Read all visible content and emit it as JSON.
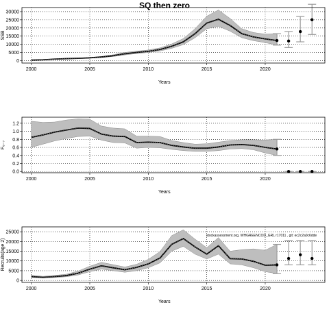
{
  "figure": {
    "title": "SQ then zero",
    "note": "stockassessment.org, WHGREENCOD_GRL r17011 , git: ec2c2a0c6dde",
    "colors": {
      "band": "#bebebe",
      "line": "#000000",
      "grid": "#000000",
      "projection": "#9a9a9a"
    }
  },
  "chart_data": [
    {
      "type": "line",
      "ylabel": "SSB",
      "xlabel": "Years",
      "xlim": [
        1999.2,
        2025.1
      ],
      "ylim": [
        -1500,
        32500
      ],
      "xticks": [
        2000,
        2005,
        2010,
        2015,
        2020
      ],
      "yticks": [
        0,
        5000,
        10000,
        15000,
        20000,
        25000,
        30000
      ],
      "ytick_labels": [
        "0",
        "5000",
        "10000",
        "15000",
        "20000",
        "25000",
        "30000"
      ],
      "grid": true,
      "x": [
        2000,
        2001,
        2002,
        2003,
        2004,
        2005,
        2006,
        2007,
        2008,
        2009,
        2010,
        2011,
        2012,
        2013,
        2014,
        2015,
        2016,
        2017,
        2018,
        2019,
        2020,
        2021
      ],
      "estimate": [
        300,
        500,
        900,
        1200,
        1400,
        1700,
        2200,
        3000,
        4200,
        5000,
        5700,
        6800,
        8800,
        11500,
        16500,
        23000,
        25300,
        21500,
        16500,
        14500,
        13300,
        12300
      ],
      "lower": [
        200,
        400,
        750,
        1000,
        1200,
        1450,
        1900,
        2500,
        3500,
        4300,
        5000,
        5900,
        7500,
        9800,
        14000,
        19500,
        21000,
        18000,
        14000,
        12200,
        11000,
        9500
      ],
      "upper": [
        400,
        650,
        1100,
        1450,
        1650,
        2000,
        2550,
        3600,
        5000,
        5800,
        6500,
        7800,
        10200,
        13500,
        19500,
        27200,
        31000,
        25800,
        19500,
        17200,
        16200,
        16500
      ],
      "projection": {
        "x": [
          2021,
          2022,
          2023,
          2024
        ],
        "median": [
          12300,
          12000,
          17800,
          25000
        ],
        "lower": [
          9500,
          8000,
          11500,
          16000
        ],
        "upper": [
          16500,
          17800,
          27000,
          34500
        ]
      }
    },
    {
      "type": "line",
      "ylabel": "F₆₋₇",
      "xlabel": "Years",
      "xlim": [
        1999.2,
        2025.1
      ],
      "ylim": [
        -0.03,
        1.35
      ],
      "xticks": [
        2000,
        2005,
        2010,
        2015,
        2020
      ],
      "yticks": [
        0.0,
        0.2,
        0.4,
        0.6,
        0.8,
        1.0,
        1.2
      ],
      "ytick_labels": [
        "0.0",
        "0.2",
        "0.4",
        "0.6",
        "0.8",
        "1.0",
        "1.2"
      ],
      "grid": true,
      "x": [
        2000,
        2001,
        2002,
        2003,
        2004,
        2005,
        2006,
        2007,
        2008,
        2009,
        2010,
        2011,
        2012,
        2013,
        2014,
        2015,
        2016,
        2017,
        2018,
        2019,
        2020,
        2021
      ],
      "estimate": [
        0.85,
        0.91,
        0.98,
        1.03,
        1.08,
        1.07,
        0.93,
        0.88,
        0.87,
        0.72,
        0.73,
        0.72,
        0.65,
        0.61,
        0.58,
        0.58,
        0.61,
        0.66,
        0.67,
        0.65,
        0.6,
        0.56
      ],
      "lower": [
        0.6,
        0.68,
        0.76,
        0.82,
        0.87,
        0.88,
        0.78,
        0.72,
        0.71,
        0.58,
        0.6,
        0.59,
        0.55,
        0.52,
        0.5,
        0.5,
        0.52,
        0.56,
        0.57,
        0.54,
        0.46,
        0.4
      ],
      "upper": [
        1.25,
        1.22,
        1.23,
        1.28,
        1.31,
        1.3,
        1.13,
        1.08,
        1.06,
        0.88,
        0.88,
        0.87,
        0.77,
        0.72,
        0.68,
        0.69,
        0.73,
        0.77,
        0.79,
        0.79,
        0.78,
        0.8
      ],
      "projection": {
        "x": [
          2021,
          2022,
          2023,
          2024
        ],
        "median": [
          0.56,
          0.0,
          0.0,
          0.0
        ],
        "lower": [
          0.4,
          0.0,
          0.0,
          0.0
        ],
        "upper": [
          0.8,
          0.0,
          0.0,
          0.0
        ]
      }
    },
    {
      "type": "line",
      "ylabel": "Recruits(age 2)",
      "xlabel": "Years",
      "xlim": [
        1999.2,
        2025.1
      ],
      "ylim": [
        -1000,
        27500
      ],
      "xticks": [
        2000,
        2005,
        2010,
        2015,
        2020
      ],
      "yticks": [
        0,
        5000,
        10000,
        15000,
        20000,
        25000
      ],
      "ytick_labels": [
        "0",
        "5000",
        "10000",
        "15000",
        "20000",
        "25000"
      ],
      "grid": true,
      "x": [
        2000,
        2001,
        2002,
        2003,
        2004,
        2005,
        2006,
        2007,
        2008,
        2009,
        2010,
        2011,
        2012,
        2013,
        2014,
        2015,
        2016,
        2017,
        2018,
        2019,
        2020,
        2021
      ],
      "estimate": [
        2000,
        1600,
        2000,
        2500,
        3700,
        5800,
        7500,
        6500,
        5500,
        6700,
        8500,
        11500,
        18500,
        21500,
        17200,
        13500,
        17800,
        11200,
        11000,
        9800,
        7800,
        8000
      ],
      "lower": [
        1500,
        1200,
        1500,
        1900,
        2800,
        4500,
        5800,
        5000,
        4200,
        5000,
        6500,
        9000,
        15000,
        17500,
        13500,
        11000,
        13500,
        8500,
        8000,
        6500,
        4500,
        3500
      ],
      "upper": [
        2700,
        2100,
        2600,
        3200,
        4800,
        7300,
        9300,
        8100,
        6900,
        8300,
        10800,
        14800,
        23000,
        26000,
        21200,
        16800,
        22000,
        15000,
        15800,
        16200,
        15500,
        18500
      ],
      "projection": {
        "x": [
          2021,
          2022,
          2023,
          2024
        ],
        "median": [
          8000,
          11300,
          13200,
          11300
        ],
        "lower": [
          3500,
          8000,
          8000,
          8000
        ],
        "upper": [
          18500,
          20500,
          20500,
          20500
        ]
      }
    }
  ]
}
